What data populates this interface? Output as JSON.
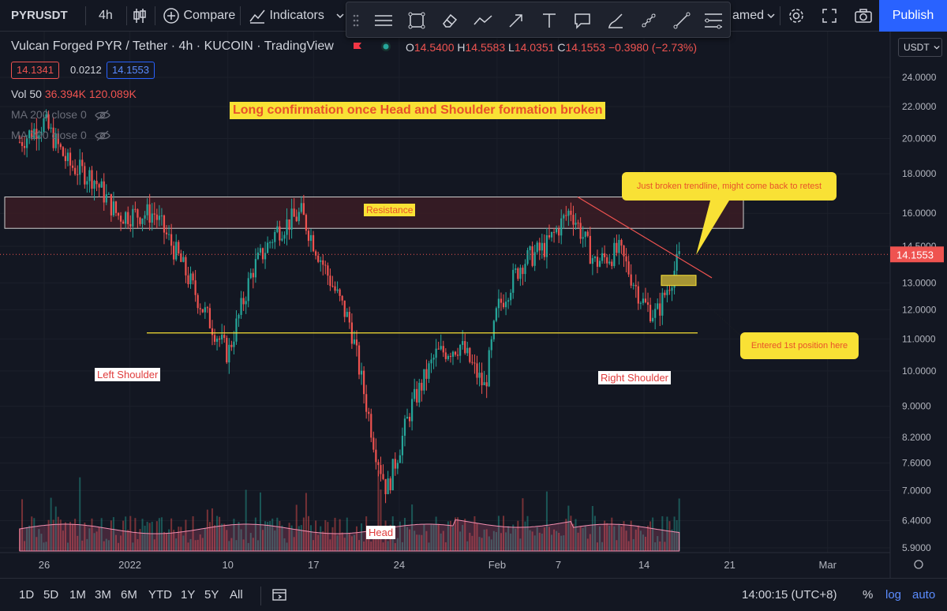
{
  "toolbar": {
    "symbol": "PYRUSDT",
    "interval": "4h",
    "compare_label": "Compare",
    "indicators_label": "Indicators",
    "unnamed_label": "amed",
    "publish_label": "Publish"
  },
  "legend": {
    "title": "Vulcan Forged PYR / Tether · 4h · KUCOIN · TradingView",
    "open_label": "O",
    "open": "14.5400",
    "high_label": "H",
    "high": "14.5583",
    "low_label": "L",
    "low": "14.0351",
    "close_label": "C",
    "close": "14.1553",
    "change": "−0.3980 (−2.73%)",
    "bid": "14.1341",
    "spread": "0.0212",
    "ask": "14.1553",
    "vol_label": "Vol 50",
    "vol_value1": "36.394K",
    "vol_value2": "120.089K",
    "ma1_label": "MA 200 close 0",
    "ma2_label": "MA 200 close 0"
  },
  "currency": "USDT",
  "price_axis": {
    "ticks": [
      "24.0000",
      "22.0000",
      "20.0000",
      "18.0000",
      "16.0000",
      "14.5000",
      "13.0000",
      "12.0000",
      "11.0000",
      "10.0000",
      "9.0000",
      "8.2000",
      "7.6000",
      "7.0000",
      "6.4000",
      "5.9000"
    ],
    "current_price": "14.1553"
  },
  "time_axis": {
    "ticks": [
      "26",
      "2022",
      "10",
      "17",
      "24",
      "Feb",
      "7",
      "14",
      "21",
      "Mar"
    ]
  },
  "annotations": {
    "headline": "Long confirmation once Head and Shoulder formation broken",
    "resistance": "Resistance",
    "left_shoulder": "Left Shoulder",
    "head": "Head",
    "right_shoulder": "Right Shoulder",
    "callout_trendline": "Just broken trendline, might come back to retest",
    "callout_entry": "Entered 1st position here"
  },
  "timeframes": [
    "1D",
    "5D",
    "1M",
    "3M",
    "6M",
    "YTD",
    "1Y",
    "5Y",
    "All"
  ],
  "bottom": {
    "clock": "14:00:15 (UTC+8)",
    "percent": "%",
    "log": "log",
    "auto": "auto"
  },
  "colors": {
    "background": "#131722",
    "up": "#26a69a",
    "down": "#ef5350",
    "accent": "#2962ff",
    "callout": "#f9e135",
    "resistance_zone": "#3b1c25"
  },
  "chart_data": {
    "type": "candlestick",
    "y_scale": "log",
    "ylim": [
      5.9,
      24.0
    ],
    "x_ticks": [
      "26",
      "2022",
      "10",
      "17",
      "24",
      "Feb",
      "7",
      "14",
      "21",
      "Mar"
    ],
    "price_path": [
      {
        "date": "Dec 24",
        "close": 19.8
      },
      {
        "date": "Dec 26",
        "close": 21.0
      },
      {
        "date": "Dec 28",
        "close": 18.5
      },
      {
        "date": "Dec 30",
        "close": 17.8
      },
      {
        "date": "Jan 1",
        "close": 15.9
      },
      {
        "date": "Jan 4",
        "close": 16.0
      },
      {
        "date": "Jan 6",
        "close": 14.0
      },
      {
        "date": "Jan 8",
        "close": 12.0
      },
      {
        "date": "Jan 10",
        "close": 10.5
      },
      {
        "date": "Jan 12",
        "close": 13.5
      },
      {
        "date": "Jan 14",
        "close": 15.2
      },
      {
        "date": "Jan 16",
        "close": 16.0
      },
      {
        "date": "Jan 18",
        "close": 13.5
      },
      {
        "date": "Jan 20",
        "close": 11.5
      },
      {
        "date": "Jan 22",
        "close": 8.0
      },
      {
        "date": "Jan 23",
        "close": 7.0
      },
      {
        "date": "Jan 25",
        "close": 9.0
      },
      {
        "date": "Jan 27",
        "close": 10.5
      },
      {
        "date": "Jan 29",
        "close": 10.8
      },
      {
        "date": "Jan 31",
        "close": 9.5
      },
      {
        "date": "Feb 1",
        "close": 12.0
      },
      {
        "date": "Feb 3",
        "close": 13.8
      },
      {
        "date": "Feb 5",
        "close": 14.5
      },
      {
        "date": "Feb 7",
        "close": 16.2
      },
      {
        "date": "Feb 9",
        "close": 13.8
      },
      {
        "date": "Feb 11",
        "close": 14.3
      },
      {
        "date": "Feb 13",
        "close": 12.2
      },
      {
        "date": "Feb 14",
        "close": 11.8
      },
      {
        "date": "Feb 16",
        "close": 14.1553
      }
    ],
    "levels": {
      "neckline": 11.2,
      "resistance_zone": [
        15.3,
        16.8
      ],
      "entry_zone": [
        12.9,
        13.3
      ]
    }
  }
}
